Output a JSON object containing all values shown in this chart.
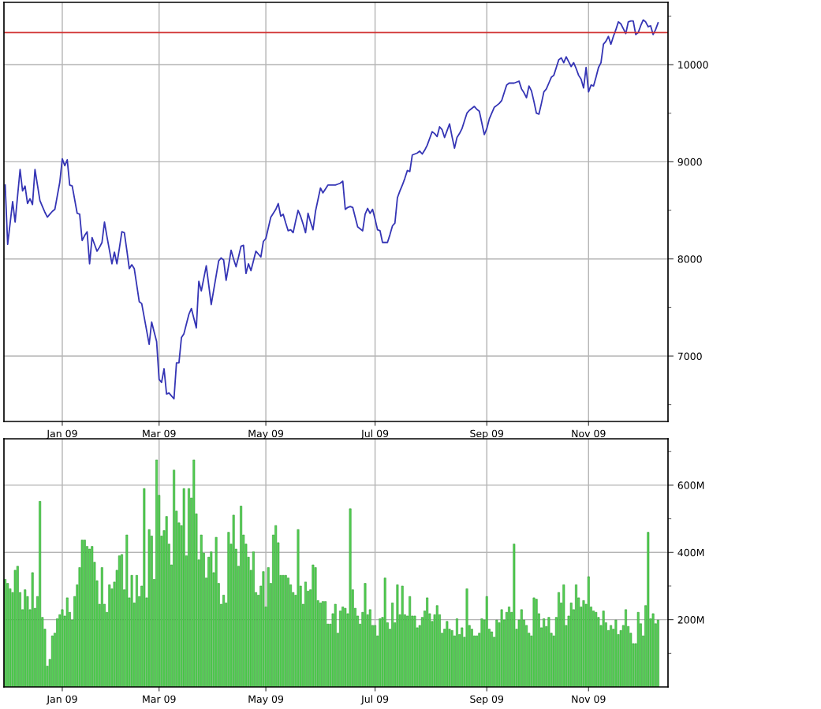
{
  "chart_data": [
    {
      "type": "line",
      "ylim": [
        6327,
        10641
      ],
      "categories": [
        null,
        null,
        null,
        null,
        null,
        null,
        null,
        null,
        null,
        null,
        null,
        null,
        null,
        null,
        null,
        null,
        null,
        null,
        null,
        null,
        null,
        null,
        null,
        "Jan 09",
        null,
        null,
        null,
        null,
        null,
        null,
        null,
        null,
        null,
        null,
        null,
        null,
        null,
        null,
        null,
        null,
        null,
        null,
        null,
        null,
        null,
        null,
        null,
        null,
        null,
        null,
        null,
        null,
        null,
        null,
        null,
        null,
        null,
        null,
        null,
        null,
        null,
        null,
        "Mar 09",
        null,
        null,
        null,
        null,
        null,
        null,
        null,
        null,
        null,
        null,
        null,
        null,
        null,
        null,
        null,
        null,
        null,
        null,
        null,
        null,
        null,
        null,
        null,
        null,
        null,
        null,
        null,
        null,
        null,
        null,
        null,
        null,
        null,
        null,
        null,
        null,
        null,
        null,
        null,
        null,
        null,
        null,
        "May 09",
        null,
        null,
        null,
        null,
        null,
        null,
        null,
        null,
        null,
        null,
        null,
        null,
        null,
        null,
        null,
        null,
        null,
        null,
        null,
        null,
        null,
        null,
        null,
        null,
        null,
        null,
        null,
        null,
        null,
        null,
        null,
        null,
        null,
        null,
        null,
        null,
        null,
        null,
        null,
        null,
        null,
        null,
        null,
        "Jul 09",
        null,
        null,
        null,
        null,
        null,
        null,
        null,
        null,
        null,
        null,
        null,
        null,
        null,
        null,
        null,
        null,
        null,
        null,
        null,
        null,
        null,
        null,
        null,
        null,
        null,
        null,
        null,
        null,
        null,
        null,
        null,
        null,
        null,
        null,
        null,
        null,
        null,
        null,
        null,
        null,
        null,
        null,
        null,
        null,
        "Sep 09",
        null,
        null,
        null,
        null,
        null,
        null,
        null,
        null,
        null,
        null,
        null,
        null,
        null,
        null,
        null,
        null,
        null,
        null,
        null,
        null,
        null,
        null,
        null,
        null,
        null,
        null,
        null,
        null,
        null,
        null,
        null,
        null,
        null,
        null,
        null,
        null,
        null,
        null,
        null,
        null,
        "Nov 09",
        null,
        null,
        null,
        null,
        null,
        null,
        null,
        null,
        null,
        null,
        null,
        null,
        null,
        null,
        null,
        null,
        null,
        null,
        null,
        null,
        null,
        null,
        null,
        null,
        null,
        null,
        null,
        null
      ],
      "yticks": [
        {
          "value": 6500,
          "label": null
        },
        7000,
        {
          "value": 7500,
          "label": null
        },
        8000,
        {
          "value": 8500,
          "label": null
        },
        9000,
        {
          "value": 9500,
          "label": null
        },
        10000,
        {
          "value": 10500,
          "label": null
        }
      ],
      "grid": true,
      "ref_lines": [
        {
          "axis": "y",
          "value": 10330,
          "color": "#d03030"
        }
      ],
      "series": [
        {
          "color": "#3535b5",
          "values": [
            8760,
            8150,
            8370,
            8590,
            8380,
            8650,
            8920,
            8700,
            8750,
            8570,
            8620,
            8560,
            8920,
            8760,
            8600,
            8540,
            8480,
            8430,
            8460,
            8490,
            8510,
            8650,
            8790,
            9030,
            8960,
            9020,
            8760,
            8750,
            8610,
            8470,
            8460,
            8190,
            8240,
            8280,
            7950,
            8220,
            8150,
            8080,
            8120,
            8170,
            8380,
            8230,
            8090,
            7950,
            8070,
            7950,
            8110,
            8280,
            8270,
            8090,
            7900,
            7940,
            7900,
            7730,
            7560,
            7540,
            7400,
            7260,
            7120,
            7350,
            7250,
            7150,
            6760,
            6730,
            6870,
            6610,
            6620,
            6590,
            6560,
            6930,
            6930,
            7190,
            7230,
            7330,
            7430,
            7490,
            7390,
            7290,
            7770,
            7670,
            7800,
            7930,
            7730,
            7530,
            7680,
            7830,
            7980,
            8010,
            7990,
            7780,
            7930,
            8090,
            8000,
            7920,
            8020,
            8130,
            8140,
            7850,
            7950,
            7880,
            7980,
            8080,
            8050,
            8020,
            8180,
            8210,
            8320,
            8430,
            8470,
            8510,
            8570,
            8440,
            8460,
            8370,
            8290,
            8300,
            8270,
            8390,
            8500,
            8440,
            8360,
            8270,
            8470,
            8380,
            8300,
            8490,
            8610,
            8730,
            8680,
            8720,
            8760,
            8760,
            8760,
            8760,
            8770,
            8780,
            8800,
            8510,
            8530,
            8540,
            8530,
            8430,
            8330,
            8310,
            8290,
            8460,
            8520,
            8470,
            8510,
            8410,
            8300,
            8290,
            8170,
            8170,
            8170,
            8250,
            8340,
            8370,
            8630,
            8700,
            8760,
            8830,
            8910,
            8900,
            9070,
            9080,
            9090,
            9110,
            9080,
            9120,
            9170,
            9240,
            9310,
            9290,
            9260,
            9360,
            9330,
            9250,
            9320,
            9390,
            9260,
            9140,
            9250,
            9290,
            9340,
            9420,
            9500,
            9530,
            9550,
            9570,
            9540,
            9520,
            9400,
            9280,
            9340,
            9440,
            9500,
            9560,
            9580,
            9600,
            9630,
            9710,
            9790,
            9810,
            9810,
            9810,
            9820,
            9830,
            9750,
            9710,
            9660,
            9780,
            9730,
            9620,
            9500,
            9490,
            9600,
            9720,
            9750,
            9810,
            9870,
            9890,
            9970,
            10050,
            10070,
            10020,
            10080,
            10030,
            9980,
            10020,
            9960,
            9890,
            9850,
            9760,
            9970,
            9720,
            9790,
            9780,
            9870,
            9970,
            10020,
            10210,
            10240,
            10290,
            10210,
            10290,
            10360,
            10440,
            10420,
            10370,
            10320,
            10440,
            10450,
            10450,
            10310,
            10330,
            10400,
            10460,
            10440,
            10390,
            10400,
            10310,
            10360,
            10430
          ]
        }
      ]
    },
    {
      "type": "bar",
      "ylim": [
        0,
        738
      ],
      "categories": [
        null,
        null,
        null,
        null,
        null,
        null,
        null,
        null,
        null,
        null,
        null,
        null,
        null,
        null,
        null,
        null,
        null,
        null,
        null,
        null,
        null,
        null,
        null,
        "Jan 09",
        null,
        null,
        null,
        null,
        null,
        null,
        null,
        null,
        null,
        null,
        null,
        null,
        null,
        null,
        null,
        null,
        null,
        null,
        null,
        null,
        null,
        null,
        null,
        null,
        null,
        null,
        null,
        null,
        null,
        null,
        null,
        null,
        null,
        null,
        null,
        null,
        null,
        null,
        "Mar 09",
        null,
        null,
        null,
        null,
        null,
        null,
        null,
        null,
        null,
        null,
        null,
        null,
        null,
        null,
        null,
        null,
        null,
        null,
        null,
        null,
        null,
        null,
        null,
        null,
        null,
        null,
        null,
        null,
        null,
        null,
        null,
        null,
        null,
        null,
        null,
        null,
        null,
        null,
        null,
        null,
        null,
        null,
        "May 09",
        null,
        null,
        null,
        null,
        null,
        null,
        null,
        null,
        null,
        null,
        null,
        null,
        null,
        null,
        null,
        null,
        null,
        null,
        null,
        null,
        null,
        null,
        null,
        null,
        null,
        null,
        null,
        null,
        null,
        null,
        null,
        null,
        null,
        null,
        null,
        null,
        null,
        null,
        null,
        null,
        null,
        null,
        null,
        "Jul 09",
        null,
        null,
        null,
        null,
        null,
        null,
        null,
        null,
        null,
        null,
        null,
        null,
        null,
        null,
        null,
        null,
        null,
        null,
        null,
        null,
        null,
        null,
        null,
        null,
        null,
        null,
        null,
        null,
        null,
        null,
        null,
        null,
        null,
        null,
        null,
        null,
        null,
        null,
        null,
        null,
        null,
        null,
        null,
        null,
        "Sep 09",
        null,
        null,
        null,
        null,
        null,
        null,
        null,
        null,
        null,
        null,
        null,
        null,
        null,
        null,
        null,
        null,
        null,
        null,
        null,
        null,
        null,
        null,
        null,
        null,
        null,
        null,
        null,
        null,
        null,
        null,
        null,
        null,
        null,
        null,
        null,
        null,
        null,
        null,
        null,
        null,
        "Nov 09",
        null,
        null,
        null,
        null,
        null,
        null,
        null,
        null,
        null,
        null,
        null,
        null,
        null,
        null,
        null,
        null,
        null,
        null,
        null,
        null,
        null,
        null,
        null,
        null,
        null,
        null,
        null,
        null
      ],
      "yticks": [
        {
          "value": 100,
          "label": null
        },
        {
          "value": 200,
          "label": "200M"
        },
        {
          "value": 300,
          "label": null
        },
        {
          "value": 400,
          "label": "400M"
        },
        {
          "value": 500,
          "label": null
        },
        {
          "value": 600,
          "label": "600M"
        },
        {
          "value": 700,
          "label": null
        }
      ],
      "grid": true,
      "series": [
        {
          "color": "#55d055",
          "values": [
            320,
            308,
            292,
            281,
            347,
            359,
            281,
            230,
            289,
            269,
            230,
            340,
            234,
            269,
            552,
            207,
            172,
            62,
            82,
            152,
            160,
            203,
            215,
            230,
            211,
            265,
            222,
            199,
            269,
            304,
            355,
            437,
            437,
            418,
            410,
            418,
            371,
            316,
            246,
            355,
            246,
            222,
            304,
            292,
            312,
            347,
            390,
            394,
            289,
            452,
            265,
            332,
            250,
            332,
            269,
            300,
            590,
            265,
            468,
            449,
            320,
            675,
            570,
            449,
            465,
            507,
            425,
            363,
            645,
            523,
            488,
            480,
            590,
            390,
            590,
            562,
            675,
            515,
            378,
            452,
            398,
            324,
            386,
            402,
            340,
            445,
            308,
            246,
            273,
            250,
            460,
            425,
            511,
            410,
            359,
            538,
            452,
            425,
            386,
            347,
            402,
            281,
            273,
            300,
            343,
            238,
            355,
            308,
            452,
            480,
            429,
            332,
            332,
            332,
            324,
            304,
            281,
            273,
            468,
            300,
            246,
            312,
            285,
            289,
            363,
            355,
            257,
            250,
            254,
            254,
            187,
            187,
            218,
            246,
            160,
            226,
            238,
            234,
            218,
            530,
            289,
            234,
            211,
            187,
            222,
            308,
            215,
            230,
            183,
            183,
            152,
            203,
            207,
            324,
            191,
            172,
            250,
            191,
            304,
            215,
            300,
            215,
            211,
            269,
            211,
            211,
            176,
            183,
            207,
            226,
            265,
            218,
            195,
            215,
            242,
            215,
            160,
            172,
            195,
            172,
            168,
            152,
            203,
            156,
            176,
            148,
            292,
            183,
            172,
            152,
            152,
            160,
            203,
            199,
            269,
            172,
            164,
            148,
            199,
            191,
            230,
            199,
            222,
            238,
            222,
            425,
            172,
            199,
            230,
            199,
            183,
            160,
            152,
            265,
            261,
            218,
            176,
            203,
            180,
            207,
            160,
            152,
            207,
            281,
            250,
            304,
            183,
            211,
            250,
            230,
            304,
            265,
            238,
            257,
            246,
            328,
            238,
            226,
            222,
            207,
            183,
            226,
            191,
            168,
            183,
            172,
            199,
            156,
            168,
            183,
            230,
            180,
            160,
            129,
            129,
            222,
            188,
            152,
            242,
            460,
            203,
            218,
            188,
            199
          ]
        }
      ]
    }
  ]
}
